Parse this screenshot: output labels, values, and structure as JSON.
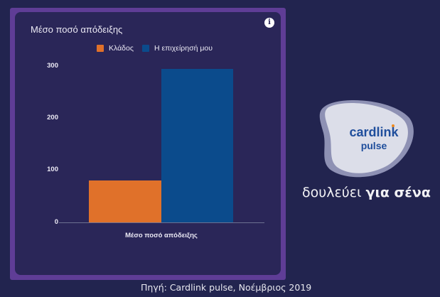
{
  "card": {
    "title": "Μέσο ποσό απόδειξης",
    "info_icon": "info-icon"
  },
  "legend": [
    {
      "label": "Κλάδος",
      "color": "#e0712a"
    },
    {
      "label": "Η επιχείρησή μου",
      "color": "#0b4b8c"
    }
  ],
  "axis": {
    "yticks": [
      "300",
      "200",
      "100",
      "0"
    ],
    "xlabel": "Μέσο ποσό απόδειξης"
  },
  "chart_data": {
    "type": "bar",
    "title": "Μέσο ποσό απόδειξης",
    "categories": [
      "Μέσο ποσό απόδειξης"
    ],
    "series": [
      {
        "name": "Κλάδος",
        "values": [
          80
        ],
        "color": "#e0712a"
      },
      {
        "name": "Η επιχείρησή μου",
        "values": [
          295
        ],
        "color": "#0b4b8c"
      }
    ],
    "xlabel": "Μέσο ποσό απόδειξης",
    "ylabel": "",
    "ylim": [
      0,
      300
    ],
    "yticks": [
      0,
      100,
      200,
      300
    ],
    "grid": false,
    "legend_position": "top"
  },
  "brand": {
    "logo_line1": "cardlink",
    "logo_line2": "pulse",
    "tagline_regular": "δουλεύει ",
    "tagline_bold": "για σένα"
  },
  "footer": {
    "source": "Πηγή: Cardlink pulse, Νοέμβριος 2019"
  }
}
